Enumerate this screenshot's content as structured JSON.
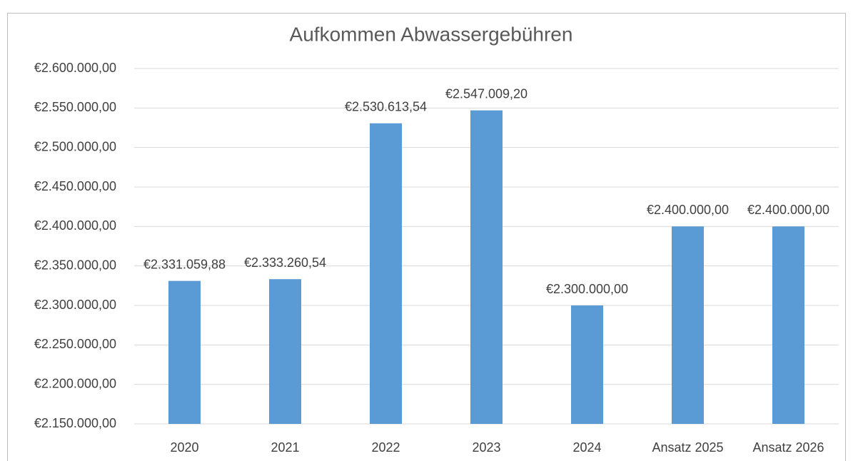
{
  "chart_data": {
    "type": "bar",
    "title": "Aufkommen Abwassergebühren",
    "categories": [
      "2020",
      "2021",
      "2022",
      "2023",
      "2024",
      "Ansatz 2025",
      "Ansatz 2026"
    ],
    "values": [
      2331059.88,
      2333260.54,
      2530613.54,
      2547009.2,
      2300000,
      2400000,
      2400000
    ],
    "value_labels": [
      "€2.331.059,88",
      "€2.333.260,54",
      "€2.530.613,54",
      "€2.547.009,20",
      "€2.300.000,00",
      "€2.400.000,00",
      "€2.400.000,00"
    ],
    "color": "#5b9bd5",
    "ylim": [
      2150000,
      2600000
    ],
    "yticks": [
      {
        "value": 2150000,
        "label": "€2.150.000,00"
      },
      {
        "value": 2200000,
        "label": "€2.200.000,00"
      },
      {
        "value": 2250000,
        "label": "€2.250.000,00"
      },
      {
        "value": 2300000,
        "label": "€2.300.000,00"
      },
      {
        "value": 2350000,
        "label": "€2.350.000,00"
      },
      {
        "value": 2400000,
        "label": "€2.400.000,00"
      },
      {
        "value": 2450000,
        "label": "€2.450.000,00"
      },
      {
        "value": 2500000,
        "label": "€2.500.000,00"
      },
      {
        "value": 2550000,
        "label": "€2.550.000,00"
      },
      {
        "value": 2600000,
        "label": "€2.600.000,00"
      }
    ],
    "grid": true
  }
}
